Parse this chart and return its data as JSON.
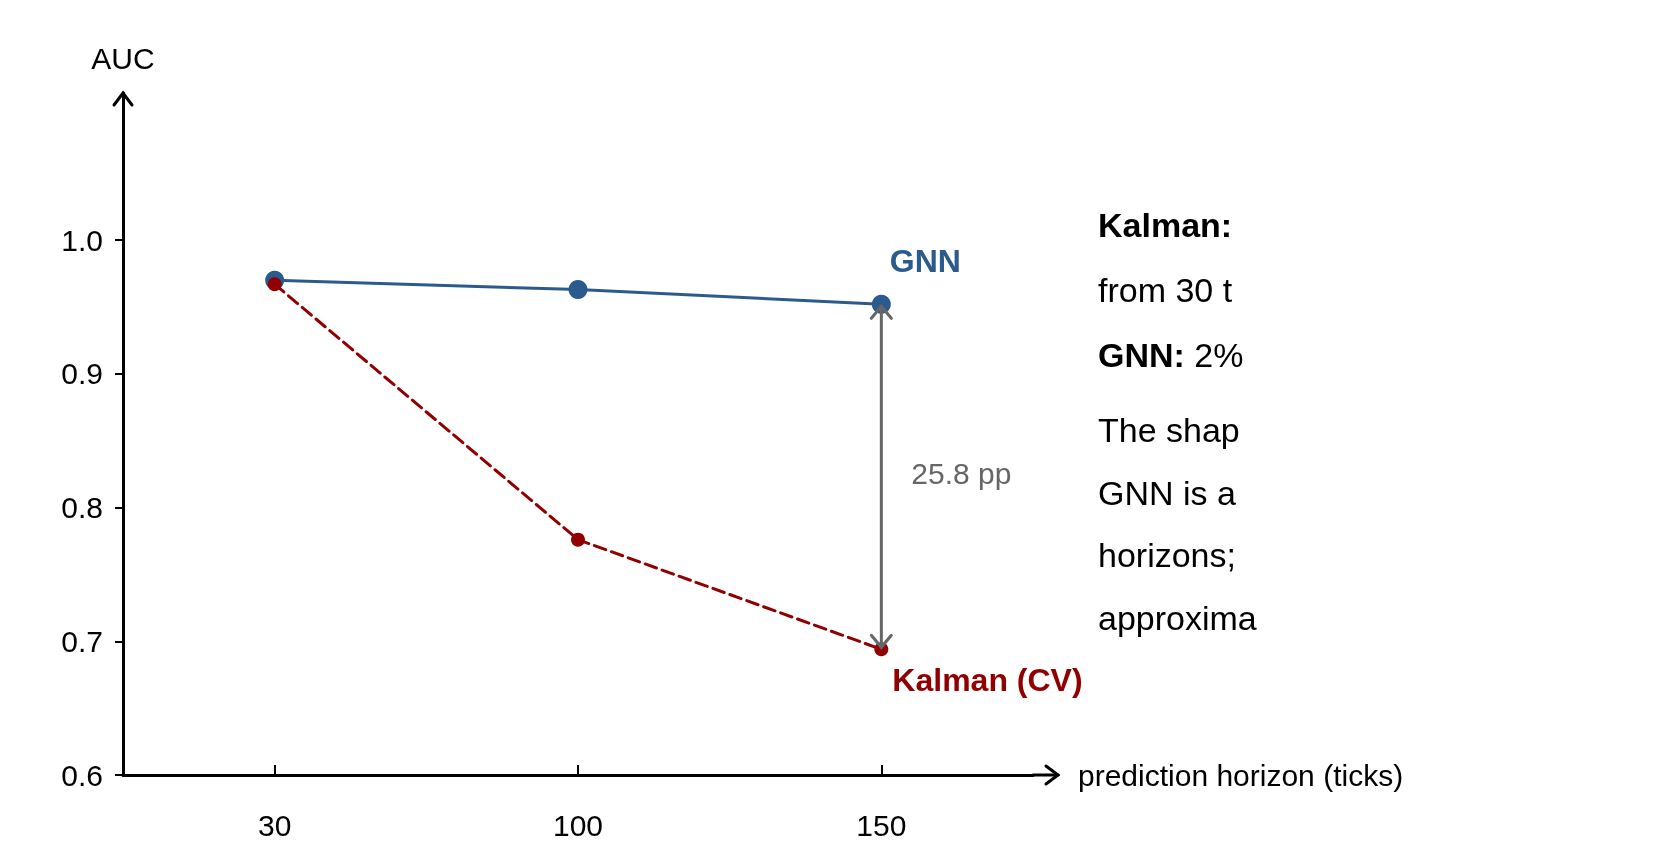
{
  "chart_data": {
    "type": "line",
    "ylabel": "AUC",
    "xlabel": "prediction horizon (ticks)",
    "categories": [
      "30",
      "100",
      "150"
    ],
    "series": [
      {
        "name": "GNN",
        "color": "#2a5b8c",
        "values": [
          0.97,
          0.963,
          0.952
        ],
        "line_style": "solid"
      },
      {
        "name": "Kalman (CV)",
        "color": "#900000",
        "values": [
          0.967,
          0.776,
          0.694
        ],
        "line_style": "dashed"
      }
    ],
    "ylim": [
      0.6,
      1.11
    ],
    "yticks": [
      {
        "value": 0.6,
        "label": "0.6"
      },
      {
        "value": 0.7,
        "label": "0.7"
      },
      {
        "value": 0.8,
        "label": "0.8"
      },
      {
        "value": 0.9,
        "label": "0.9"
      },
      {
        "value": 1.0,
        "label": "1.0"
      }
    ],
    "marker": "circle",
    "grid": false,
    "legend": false,
    "annotations": [
      "25.8 pp",
      "Kalman:",
      "from 30 t",
      "GNN: 2%",
      "The shap",
      "GNN is a",
      "horizons;",
      "approxima"
    ]
  }
}
